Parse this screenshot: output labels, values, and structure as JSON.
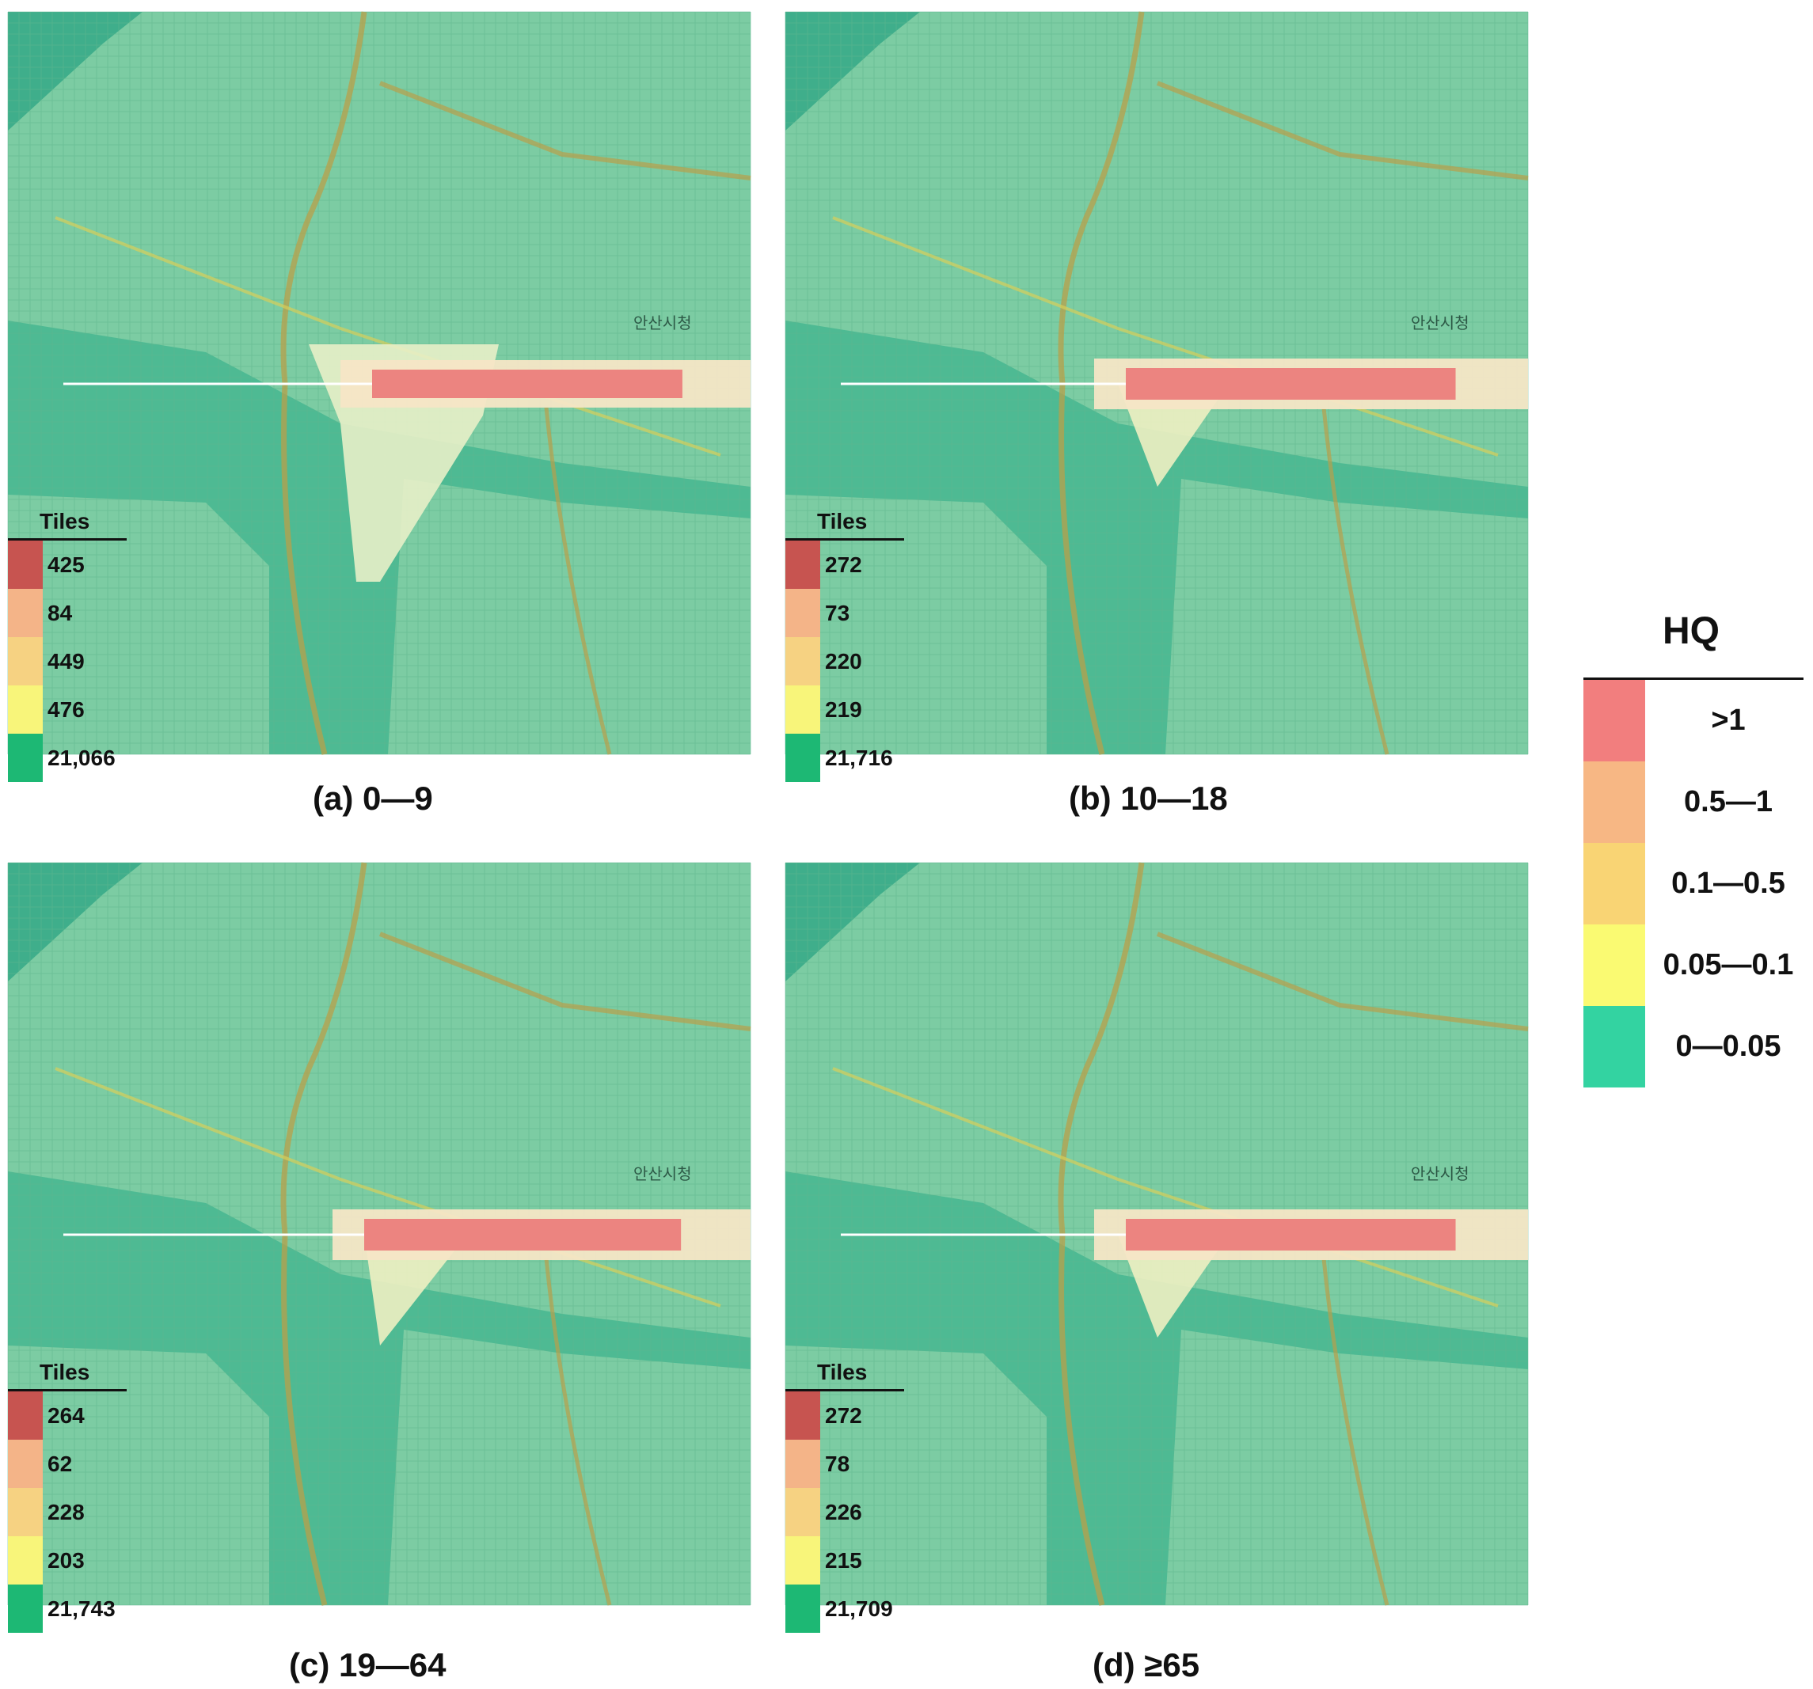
{
  "legend": {
    "title": "HQ",
    "classes": [
      {
        "label": ">1",
        "color": "#f27e7e"
      },
      {
        "label": "0.5—1",
        "color": "#f7b784"
      },
      {
        "label": "0.1—0.5",
        "color": "#f9d474"
      },
      {
        "label": "0.05—0.1",
        "color": "#fafa72"
      },
      {
        "label": "0—0.05",
        "color": "#33d3a1"
      }
    ]
  },
  "tile_colors": [
    "#c75450",
    "#f4b488",
    "#f6d282",
    "#f8f57a",
    "#1db874"
  ],
  "panels": [
    {
      "caption": "(a) 0—9",
      "tiles_title": "Tiles",
      "counts": [
        "425",
        "84",
        "449",
        "476",
        "21,066"
      ]
    },
    {
      "caption": "(b) 10—18",
      "tiles_title": "Tiles",
      "counts": [
        "272",
        "73",
        "220",
        "219",
        "21,716"
      ]
    },
    {
      "caption": "(c) 19—64",
      "tiles_title": "Tiles",
      "counts": [
        "264",
        "62",
        "228",
        "203",
        "21,743"
      ]
    },
    {
      "caption": "(d) ≥65",
      "tiles_title": "Tiles",
      "counts": [
        "272",
        "78",
        "226",
        "215",
        "21,709"
      ]
    }
  ],
  "map_labels": [
    "안산시청",
    "안산시청",
    "안산시청",
    "안산시청"
  ]
}
